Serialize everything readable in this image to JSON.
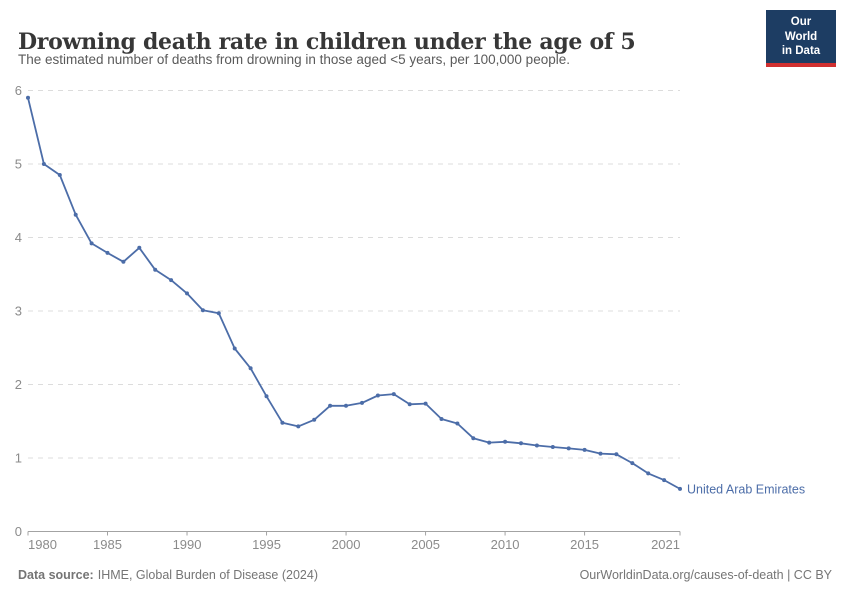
{
  "header": {
    "title": "Drowning death rate in children under the age of 5",
    "subtitle": "The estimated number of deaths from drowning in those aged <5 years, per 100,000 people.",
    "logo": {
      "line1": "Our World",
      "line2": "in Data"
    }
  },
  "chart_data": {
    "type": "line",
    "title": "Drowning death rate in children under the age of 5",
    "subtitle": "The estimated number of deaths from drowning in those aged <5 years, per 100,000 people.",
    "xlabel": "",
    "ylabel": "",
    "xlim": [
      1980,
      2021
    ],
    "ylim": [
      0,
      6
    ],
    "xticks": [
      1980,
      1985,
      1990,
      1995,
      2000,
      2005,
      2010,
      2015,
      2021
    ],
    "yticks": [
      0,
      1,
      2,
      3,
      4,
      5,
      6
    ],
    "grid": "horizontal-dashed",
    "legend_position": "end-of-line",
    "x": [
      1980,
      1981,
      1982,
      1983,
      1984,
      1985,
      1986,
      1987,
      1988,
      1989,
      1990,
      1991,
      1992,
      1993,
      1994,
      1995,
      1996,
      1997,
      1998,
      1999,
      2000,
      2001,
      2002,
      2003,
      2004,
      2005,
      2006,
      2007,
      2008,
      2009,
      2010,
      2011,
      2012,
      2013,
      2014,
      2015,
      2016,
      2017,
      2018,
      2019,
      2020,
      2021
    ],
    "series": [
      {
        "name": "United Arab Emirates",
        "color": "#4c6da8",
        "values": [
          5.9,
          5.0,
          4.85,
          4.31,
          3.92,
          3.79,
          3.67,
          3.86,
          3.56,
          3.42,
          3.24,
          3.01,
          2.97,
          2.49,
          2.22,
          1.84,
          1.48,
          1.43,
          1.52,
          1.71,
          1.71,
          1.75,
          1.85,
          1.87,
          1.73,
          1.74,
          1.53,
          1.47,
          1.27,
          1.21,
          1.22,
          1.2,
          1.17,
          1.15,
          1.13,
          1.11,
          1.06,
          1.05,
          0.93,
          0.79,
          0.7,
          0.58
        ]
      }
    ]
  },
  "footer": {
    "source_label": "Data source:",
    "source_value": "IHME, Global Burden of Disease (2024)",
    "credit": "OurWorldinData.org/causes-of-death | CC BY"
  },
  "colors": {
    "line": "#4c6da8",
    "grid": "#dcdcdc",
    "axis": "#a3a3a3",
    "tick_text": "#8b8b8b",
    "title_text": "#373737",
    "logo_bg": "#1d3d63",
    "logo_accent": "#d13030"
  }
}
